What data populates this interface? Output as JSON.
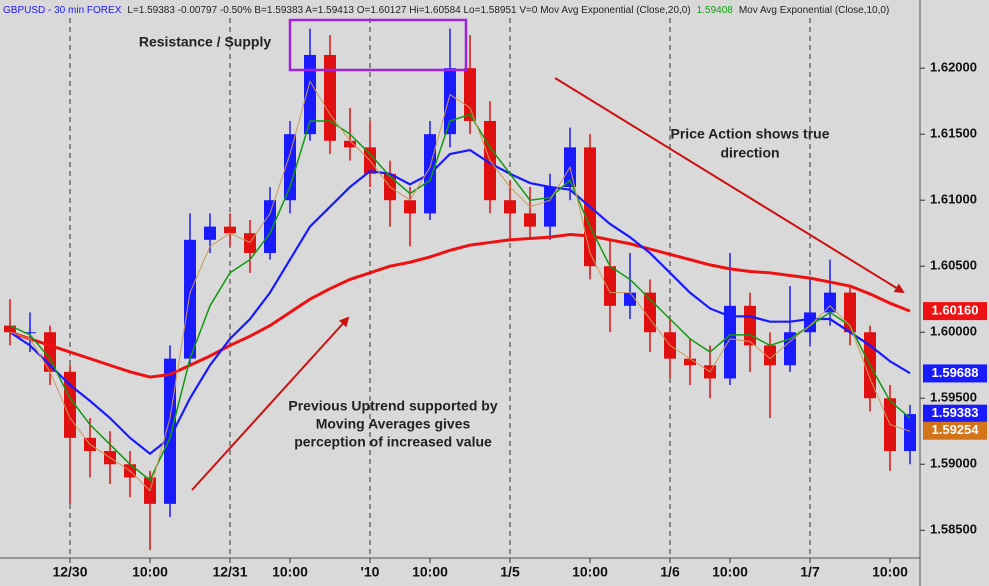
{
  "chart_data": {
    "type": "candlestick",
    "header": [
      {
        "text": "GBPUSD - 30 min  FOREX",
        "color": "#1a1aff"
      },
      {
        "text": "L=1.59383  -0.00797  -0.50%  B=1.59383  A=1.59413  O=1.60127  Hi=1.60584  Lo=1.58951  V=0  Mov Avg Exponential (Close,20,0)",
        "color": "#222222"
      },
      {
        "text": "1.59408",
        "color": "#10a010"
      },
      {
        "text": "Mov Avg Exponential (Close,10,0)",
        "color": "#222222"
      }
    ],
    "categories": [
      null,
      null,
      null,
      "12/30",
      null,
      null,
      null,
      "10:00",
      null,
      null,
      null,
      "12/31",
      null,
      null,
      "10:00",
      null,
      null,
      null,
      "'10",
      null,
      null,
      "10:00",
      null,
      null,
      null,
      "1/5",
      null,
      null,
      null,
      "10:00",
      null,
      null,
      null,
      "1/6",
      null,
      null,
      "10:00",
      null,
      null,
      null,
      "1/7",
      null,
      null,
      null,
      "10:00",
      null
    ],
    "open": [
      1.6005,
      1.6,
      1.6,
      1.597,
      1.592,
      1.591,
      1.59,
      1.589,
      1.587,
      1.598,
      1.607,
      1.608,
      1.6075,
      1.606,
      1.61,
      1.615,
      1.621,
      1.6145,
      1.614,
      1.612,
      1.61,
      1.609,
      1.615,
      1.62,
      1.616,
      1.61,
      1.609,
      1.608,
      1.611,
      1.614,
      1.605,
      1.602,
      1.603,
      1.6,
      1.598,
      1.5975,
      1.5965,
      1.602,
      1.599,
      1.5975,
      1.6,
      1.6015,
      1.603,
      1.6,
      1.595,
      1.591
    ],
    "high": [
      1.6025,
      1.6015,
      1.6005,
      1.5975,
      1.5935,
      1.5925,
      1.591,
      1.5895,
      1.599,
      1.609,
      1.609,
      1.609,
      1.6085,
      1.611,
      1.616,
      1.623,
      1.6225,
      1.617,
      1.616,
      1.613,
      1.611,
      1.616,
      1.623,
      1.6225,
      1.6175,
      1.6115,
      1.611,
      1.612,
      1.6155,
      1.615,
      1.607,
      1.606,
      1.604,
      1.601,
      1.5995,
      1.599,
      1.606,
      1.603,
      1.6,
      1.6035,
      1.604,
      1.6055,
      1.6035,
      1.6005,
      1.596,
      1.5945
    ],
    "low": [
      1.599,
      1.5985,
      1.596,
      1.587,
      1.589,
      1.5885,
      1.5875,
      1.5835,
      1.586,
      1.5975,
      1.606,
      1.6065,
      1.6045,
      1.6055,
      1.609,
      1.6145,
      1.6135,
      1.613,
      1.611,
      1.608,
      1.6065,
      1.6085,
      1.614,
      1.615,
      1.609,
      1.607,
      1.607,
      1.607,
      1.61,
      1.604,
      1.6,
      1.601,
      1.5985,
      1.5965,
      1.596,
      1.595,
      1.596,
      1.597,
      1.5935,
      1.597,
      1.599,
      1.6005,
      1.599,
      1.594,
      1.5895,
      1.59
    ],
    "close": [
      1.6,
      1.6,
      1.597,
      1.592,
      1.591,
      1.59,
      1.589,
      1.587,
      1.598,
      1.607,
      1.608,
      1.6075,
      1.606,
      1.61,
      1.615,
      1.621,
      1.6145,
      1.614,
      1.612,
      1.61,
      1.609,
      1.615,
      1.62,
      1.616,
      1.61,
      1.609,
      1.608,
      1.611,
      1.614,
      1.605,
      1.602,
      1.603,
      1.6,
      1.598,
      1.5975,
      1.5965,
      1.602,
      1.599,
      1.5975,
      1.6,
      1.6015,
      1.603,
      1.6,
      1.595,
      1.591,
      1.5938
    ],
    "up_color": "#1a1aff",
    "down_color": "#e01010",
    "series": [
      {
        "color": "#ee1111",
        "width": 3,
        "values": [
          1.6,
          1.5995,
          1.599,
          1.5985,
          1.598,
          1.5975,
          1.597,
          1.5966,
          1.5968,
          1.5975,
          1.5982,
          1.599,
          1.5997,
          1.6005,
          1.6015,
          1.6025,
          1.6033,
          1.604,
          1.6045,
          1.605,
          1.6053,
          1.6057,
          1.6062,
          1.6066,
          1.6068,
          1.607,
          1.6071,
          1.6072,
          1.6074,
          1.6073,
          1.607,
          1.6067,
          1.6063,
          1.6059,
          1.6055,
          1.6051,
          1.6048,
          1.6046,
          1.6045,
          1.6043,
          1.6041,
          1.6038,
          1.6035,
          1.6029,
          1.6022,
          1.6016
        ]
      },
      {
        "color": "#1a1aff",
        "width": 2.2,
        "values": [
          1.6,
          1.599,
          1.5975,
          1.596,
          1.5948,
          1.5935,
          1.592,
          1.5908,
          1.592,
          1.595,
          1.5975,
          1.5995,
          1.601,
          1.603,
          1.6055,
          1.608,
          1.6095,
          1.611,
          1.6122,
          1.612,
          1.6112,
          1.612,
          1.6135,
          1.6138,
          1.6128,
          1.612,
          1.6113,
          1.611,
          1.6108,
          1.6095,
          1.6082,
          1.6072,
          1.606,
          1.6045,
          1.603,
          1.6018,
          1.6012,
          1.6012,
          1.6008,
          1.6008,
          1.601,
          1.601,
          1.6,
          1.599,
          1.5978,
          1.5969
        ]
      },
      {
        "color": "#119911",
        "width": 1.5,
        "values": [
          1.6005,
          1.5998,
          1.598,
          1.595,
          1.593,
          1.5915,
          1.59,
          1.5888,
          1.592,
          1.598,
          1.602,
          1.6045,
          1.6055,
          1.6075,
          1.611,
          1.616,
          1.616,
          1.615,
          1.6135,
          1.6118,
          1.6105,
          1.6115,
          1.616,
          1.6165,
          1.614,
          1.612,
          1.61,
          1.6102,
          1.6115,
          1.608,
          1.605,
          1.604,
          1.6025,
          1.601,
          1.5995,
          1.5985,
          1.5998,
          1.5998,
          1.599,
          1.5995,
          1.6005,
          1.6015,
          1.6005,
          1.5975,
          1.5948,
          1.5935
        ]
      },
      {
        "color": "#c89a5a",
        "width": 1,
        "values": [
          1.6,
          1.5995,
          1.597,
          1.5935,
          1.5915,
          1.5905,
          1.5895,
          1.588,
          1.5935,
          1.603,
          1.6065,
          1.6075,
          1.6068,
          1.609,
          1.6135,
          1.619,
          1.6165,
          1.6145,
          1.613,
          1.611,
          1.61,
          1.6125,
          1.618,
          1.617,
          1.613,
          1.611,
          1.6095,
          1.61,
          1.6125,
          1.606,
          1.603,
          1.603,
          1.601,
          1.599,
          1.598,
          1.597,
          1.5995,
          1.5993,
          1.598,
          1.5993,
          1.6005,
          1.602,
          1.6005,
          1.5965,
          1.593,
          1.5925
        ]
      }
    ],
    "ylim": [
      1.5829,
      1.6238
    ],
    "yticks": [
      {
        "value": 1.585,
        "label": "1.58500"
      },
      {
        "value": 1.59,
        "label": "1.59000"
      },
      {
        "value": 1.595,
        "label": "1.59500"
      },
      {
        "value": 1.6,
        "label": "1.60000"
      },
      {
        "value": 1.605,
        "label": "1.60500"
      },
      {
        "value": 1.61,
        "label": "1.61000"
      },
      {
        "value": 1.615,
        "label": "1.61500"
      },
      {
        "value": 1.62,
        "label": "1.62000"
      }
    ],
    "price_tags": [
      {
        "value": 1.6016,
        "label": "1.60160",
        "color": "#ee1111"
      },
      {
        "value": 1.59688,
        "label": "1.59688",
        "color": "#1a1aff"
      },
      {
        "value": 1.59383,
        "label": "1.59383",
        "color": "#1a1aff"
      },
      {
        "value": 1.59254,
        "label": "1.59254",
        "color": "#d4741a"
      }
    ],
    "annotations": [
      {
        "lines": [
          "Resistance / Supply"
        ]
      },
      {
        "lines": [
          "Price Action shows true",
          "direction"
        ]
      },
      {
        "lines": [
          "Previous Uptrend supported by",
          "Moving Averages gives",
          "perception of increased value"
        ]
      }
    ]
  }
}
